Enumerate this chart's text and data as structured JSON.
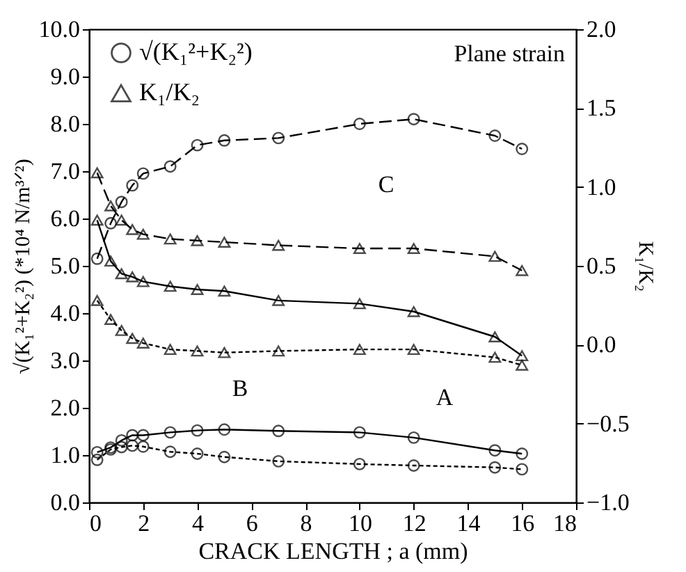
{
  "chart_data": {
    "type": "line",
    "xlabel": "CRACK LENGTH ; a (mm)",
    "ylabel": "√(K₁²+K₂²) (*10⁴ N/m³ᐟ²)",
    "y2label": "K₁/K₂",
    "x": [
      0.3,
      0.8,
      1.2,
      1.6,
      2,
      3,
      4,
      5,
      7,
      10,
      12,
      15,
      16
    ],
    "xlim": [
      0,
      18
    ],
    "xticks": [
      0,
      2,
      4,
      6,
      8,
      10,
      12,
      14,
      16,
      18
    ],
    "ylim": [
      0,
      10
    ],
    "yticks": [
      {
        "value": 0,
        "label": "0.0"
      },
      {
        "value": 1,
        "label": "1.0"
      },
      {
        "value": 2,
        "label": "2.0"
      },
      {
        "value": 3,
        "label": "3.0"
      },
      {
        "value": 4,
        "label": "4.0"
      },
      {
        "value": 5,
        "label": "5.0"
      },
      {
        "value": 6,
        "label": "6.0"
      },
      {
        "value": 7,
        "label": "7.0"
      },
      {
        "value": 8,
        "label": "8.0"
      },
      {
        "value": 9,
        "label": "9.0"
      },
      {
        "value": 10,
        "label": "10.0"
      }
    ],
    "y2lim": [
      -1,
      2
    ],
    "y2ticks": [
      {
        "value": -1,
        "label": "−1.0"
      },
      {
        "value": -0.5,
        "label": "−0.5"
      },
      {
        "value": 0,
        "label": "0.0"
      },
      {
        "value": 0.5,
        "label": "0.5"
      },
      {
        "value": 1,
        "label": "1.0"
      },
      {
        "value": 1.5,
        "label": "1.5"
      },
      {
        "value": 2,
        "label": "2.0"
      }
    ],
    "series": [
      {
        "name": "√(K₁²+K₂²)",
        "color": "#000000",
        "marker": "circle",
        "line_style": "dashed",
        "values": [
          5.15,
          5.9,
          6.35,
          6.7,
          6.95,
          7.1,
          7.55,
          7.65,
          7.7,
          8.0,
          8.1,
          7.75,
          7.47
        ]
      },
      {
        "color": "#000000",
        "marker": "circle",
        "line_style": "solid",
        "values": [
          1.06,
          1.16,
          1.31,
          1.42,
          1.42,
          1.48,
          1.52,
          1.54,
          1.51,
          1.48,
          1.37,
          1.1,
          1.03
        ]
      },
      {
        "color": "#000000",
        "marker": "circle",
        "line_style": "dotted",
        "values": [
          0.9,
          1.12,
          1.17,
          1.2,
          1.18,
          1.07,
          1.03,
          0.96,
          0.87,
          0.81,
          0.78,
          0.74,
          0.7
        ]
      },
      {
        "name": "K₁/K₂",
        "color": "#000000",
        "marker": "triangle",
        "line_style": "dashed",
        "axis": "y2",
        "values": [
          1.09,
          0.88,
          0.79,
          0.73,
          0.7,
          0.67,
          0.66,
          0.65,
          0.63,
          0.61,
          0.61,
          0.56,
          0.47
        ]
      },
      {
        "color": "#000000",
        "marker": "triangle",
        "line_style": "solid",
        "axis": "y2",
        "values": [
          0.79,
          0.53,
          0.45,
          0.43,
          0.4,
          0.37,
          0.35,
          0.34,
          0.28,
          0.26,
          0.21,
          0.05,
          -0.07
        ]
      },
      {
        "color": "#000000",
        "marker": "triangle",
        "line_style": "dotted",
        "axis": "y2",
        "values": [
          0.28,
          0.16,
          0.09,
          0.04,
          0.01,
          -0.03,
          -0.04,
          -0.05,
          -0.04,
          -0.03,
          -0.03,
          -0.08,
          -0.13
        ]
      }
    ],
    "annotations": [
      "Plane strain",
      "C",
      "B",
      "A"
    ],
    "legend": "top left",
    "grid": false
  }
}
